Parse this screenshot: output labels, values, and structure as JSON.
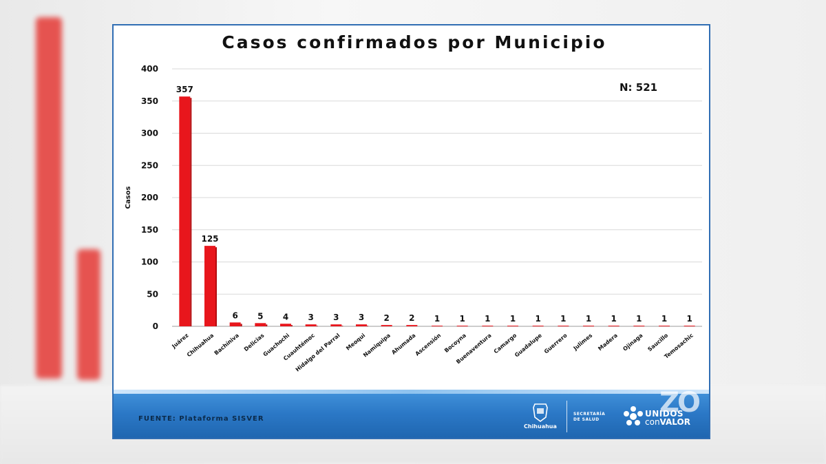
{
  "footer": {
    "source": "FUENTE: Plataforma SISVER",
    "logo_chihuahua": "Chihuahua",
    "logo_salud_line1": "SECRETARÍA",
    "logo_salud_line2": "DE SALUD",
    "logo_unidos": "UNIDOS",
    "logo_con": "con",
    "logo_valor": "VALOR"
  },
  "colors": {
    "bar": "#e8161c",
    "frame": "#2f6db3",
    "footer": "#2b78c6"
  },
  "chart_data": {
    "type": "bar",
    "title": "Casos confirmados por Municipio",
    "ylabel": "Casos",
    "xlabel": "",
    "annotation": "N: 521",
    "ylim": [
      0,
      400
    ],
    "yticks": [
      0,
      50,
      100,
      150,
      200,
      250,
      300,
      350,
      400
    ],
    "grid": true,
    "categories": [
      "Juárez",
      "Chihuahua",
      "Bachíniva",
      "Delicias",
      "Guachochi",
      "Cuauhtémoc",
      "Hidalgo del Parral",
      "Meoqui",
      "Namiquipa",
      "Ahumada",
      "Ascensión",
      "Bocoyna",
      "Buenaventura",
      "Camargo",
      "Guadalupe",
      "Guerrero",
      "Julimes",
      "Madera",
      "Ojinaga",
      "Saucillo",
      "Temosachic"
    ],
    "values": [
      357,
      125,
      6,
      5,
      4,
      3,
      3,
      3,
      2,
      2,
      1,
      1,
      1,
      1,
      1,
      1,
      1,
      1,
      1,
      1,
      1
    ]
  }
}
